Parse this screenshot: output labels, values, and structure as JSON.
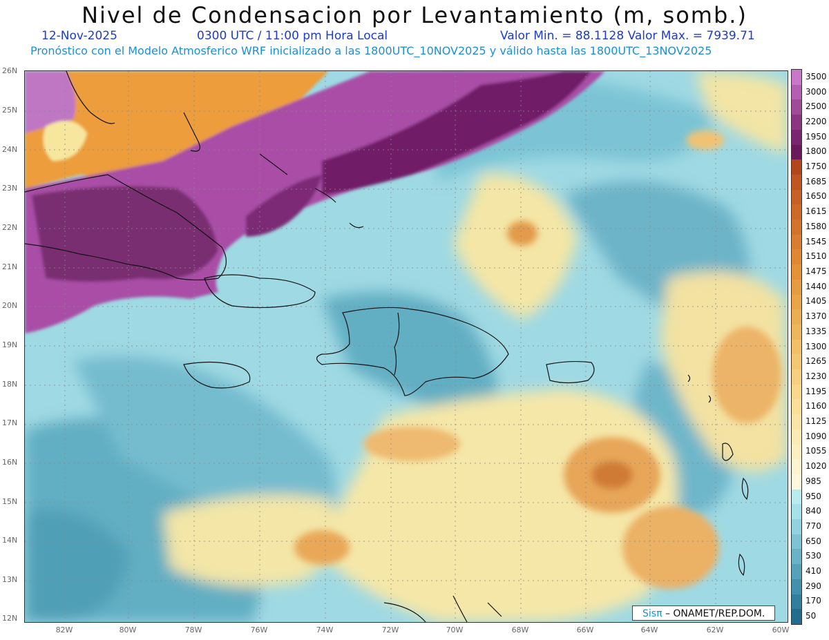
{
  "header": {
    "title": "Nivel de Condensacion por Levantamiento (m, somb.)",
    "date": "12-Nov-2025",
    "time": "0300 UTC / 11:00 pm Hora Local",
    "minmax": "Valor Min. = 88.1128   Valor Max. = 7939.71",
    "subtitle": "Pronóstico con el Modelo Atmosferico WRF inicializado a las 1800UTC_10NOV2025 y válido hasta las  1800UTC_13NOV2025"
  },
  "map": {
    "lat_labels": [
      "26N",
      "25N",
      "24N",
      "23N",
      "22N",
      "21N",
      "20N",
      "19N",
      "18N",
      "17N",
      "16N",
      "15N",
      "14N",
      "13N",
      "12N"
    ],
    "lon_labels": [
      "82W",
      "80W",
      "78W",
      "76W",
      "74W",
      "72W",
      "70W",
      "68W",
      "66W",
      "64W",
      "62W",
      "60W"
    ]
  },
  "colorbar": {
    "labels": [
      "3500",
      "3000",
      "2500",
      "2200",
      "1950",
      "1800",
      "1750",
      "1685",
      "1650",
      "1615",
      "1580",
      "1545",
      "1510",
      "1475",
      "1440",
      "1405",
      "1370",
      "1335",
      "1300",
      "1265",
      "1230",
      "1195",
      "1160",
      "1125",
      "1090",
      "1055",
      "1020",
      "985",
      "950",
      "840",
      "770",
      "650",
      "530",
      "410",
      "290",
      "170",
      "50"
    ],
    "colors": [
      "#c978c9",
      "#b45fb0",
      "#a04a9a",
      "#8c3583",
      "#7a2570",
      "#681a5c",
      "#b4461c",
      "#bf5520",
      "#c76024",
      "#cd6a28",
      "#d4742c",
      "#d97e30",
      "#de8834",
      "#e39238",
      "#e69c40",
      "#e9a548",
      "#ecae52",
      "#efb75c",
      "#f2c066",
      "#f4c872",
      "#f6d07e",
      "#f8d88a",
      "#f9df98",
      "#fae5a6",
      "#fbebb4",
      "#fcf0c2",
      "#fdf5d0",
      "#fef9de",
      "#b9ecef",
      "#a6e0e8",
      "#92d2de",
      "#7ec3d3",
      "#6ab3c7",
      "#56a2ba",
      "#4390ac",
      "#317e9d",
      "#226c8e"
    ]
  },
  "credit": {
    "brand": "Sisπ",
    "org": "– ONAMET/REP.DOM."
  }
}
